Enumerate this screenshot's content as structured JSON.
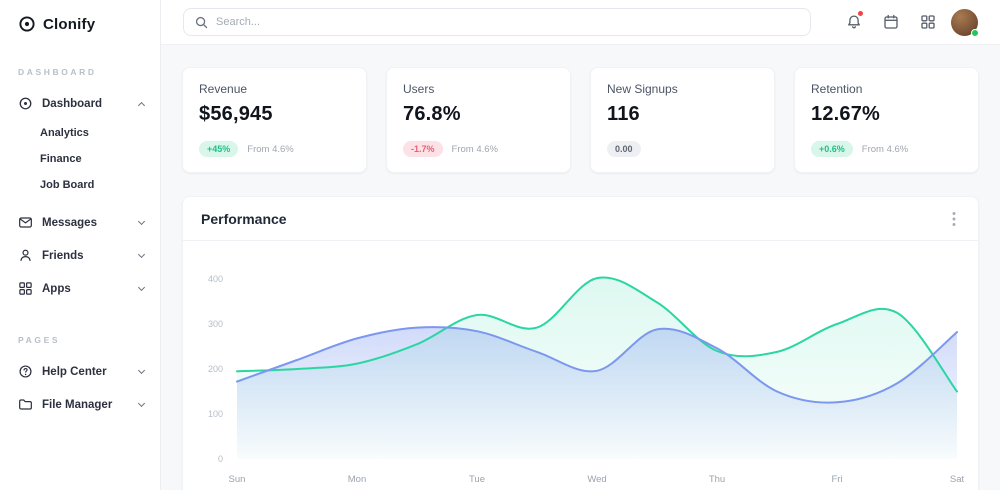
{
  "brand": {
    "name": "Clonify"
  },
  "sidebar": {
    "sections": [
      {
        "label": "DASHBOARD"
      },
      {
        "label": "PAGES"
      }
    ],
    "items": [
      {
        "label": "Dashboard",
        "icon": "dashboard-icon",
        "expanded": true
      },
      {
        "label": "Analytics"
      },
      {
        "label": "Finance"
      },
      {
        "label": "Job Board"
      },
      {
        "label": "Messages",
        "icon": "messages-icon"
      },
      {
        "label": "Friends",
        "icon": "friends-icon"
      },
      {
        "label": "Apps",
        "icon": "apps-icon"
      },
      {
        "label": "Help Center",
        "icon": "help-icon"
      },
      {
        "label": "File Manager",
        "icon": "folder-icon"
      }
    ]
  },
  "header": {
    "search_placeholder": "Search...",
    "icons": [
      "bell-icon",
      "calendar-icon",
      "grid-icon",
      "avatar"
    ]
  },
  "stats": [
    {
      "title": "Revenue",
      "value": "$56,945",
      "badge": "+45%",
      "badge_type": "positive",
      "note": "From 4.6%"
    },
    {
      "title": "Users",
      "value": "76.8%",
      "badge": "-1.7%",
      "badge_type": "negative",
      "note": "From 4.6%"
    },
    {
      "title": "New Signups",
      "value": "116",
      "badge": "0.00",
      "badge_type": "neutral",
      "note": ""
    },
    {
      "title": "Retention",
      "value": "12.67%",
      "badge": "+0.6%",
      "badge_type": "positive",
      "note": "From 4.6%"
    }
  ],
  "performance": {
    "title": "Performance"
  },
  "chart_data": {
    "type": "area",
    "title": "Performance",
    "categories": [
      "Sun",
      "Mon",
      "Tue",
      "Wed",
      "Thu",
      "Fri",
      "Sat"
    ],
    "x": [
      0,
      0.5,
      1,
      1.5,
      2,
      2.5,
      3,
      3.5,
      4,
      4.5,
      5,
      5.5,
      6
    ],
    "series": [
      {
        "name": "series-green",
        "color": "#2bd6a3",
        "fill_opacity": 0.16,
        "values": [
          195,
          200,
          212,
          255,
          320,
          292,
          402,
          348,
          240,
          238,
          300,
          325,
          150
        ]
      },
      {
        "name": "series-blue",
        "color": "#7b97ef",
        "fill_opacity": 0.35,
        "values": [
          172,
          220,
          268,
          292,
          284,
          238,
          196,
          288,
          246,
          150,
          126,
          168,
          282
        ]
      }
    ],
    "yticks": [
      0,
      100,
      200,
      300,
      400
    ],
    "ylim": [
      0,
      440
    ],
    "grid": false,
    "legend": "none"
  }
}
